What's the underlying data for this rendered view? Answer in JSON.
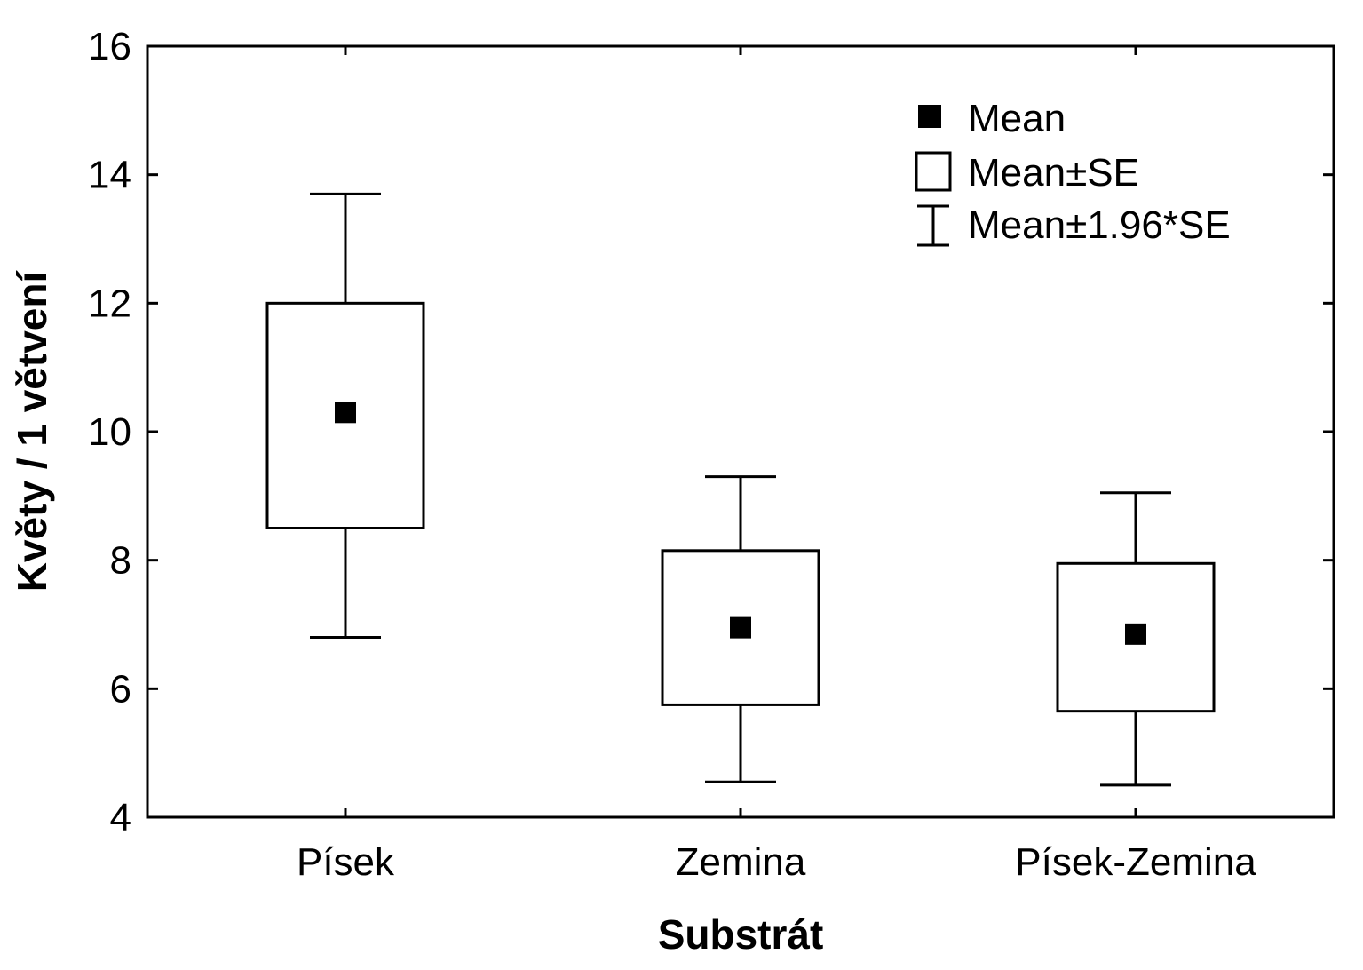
{
  "chart_data": {
    "type": "box",
    "title": "",
    "xlabel": "Substrát",
    "ylabel": "Květy / 1 větvení",
    "ylim": [
      4,
      16
    ],
    "yticks": [
      4,
      6,
      8,
      10,
      12,
      14,
      16
    ],
    "grid": false,
    "legend_position": "top-right",
    "legend": {
      "mean": "Mean",
      "se": "Mean±SE",
      "ci": "Mean±1.96*SE"
    },
    "categories": [
      "Písek",
      "Zemina",
      "Písek-Zemina"
    ],
    "series": [
      {
        "mean": 10.3,
        "se_low": 8.5,
        "se_high": 12.0,
        "ci_low": 6.8,
        "ci_high": 13.7
      },
      {
        "mean": 6.95,
        "se_low": 5.75,
        "se_high": 8.15,
        "ci_low": 4.55,
        "ci_high": 9.3
      },
      {
        "mean": 6.85,
        "se_low": 5.65,
        "se_high": 7.95,
        "ci_low": 4.5,
        "ci_high": 9.05
      }
    ]
  }
}
